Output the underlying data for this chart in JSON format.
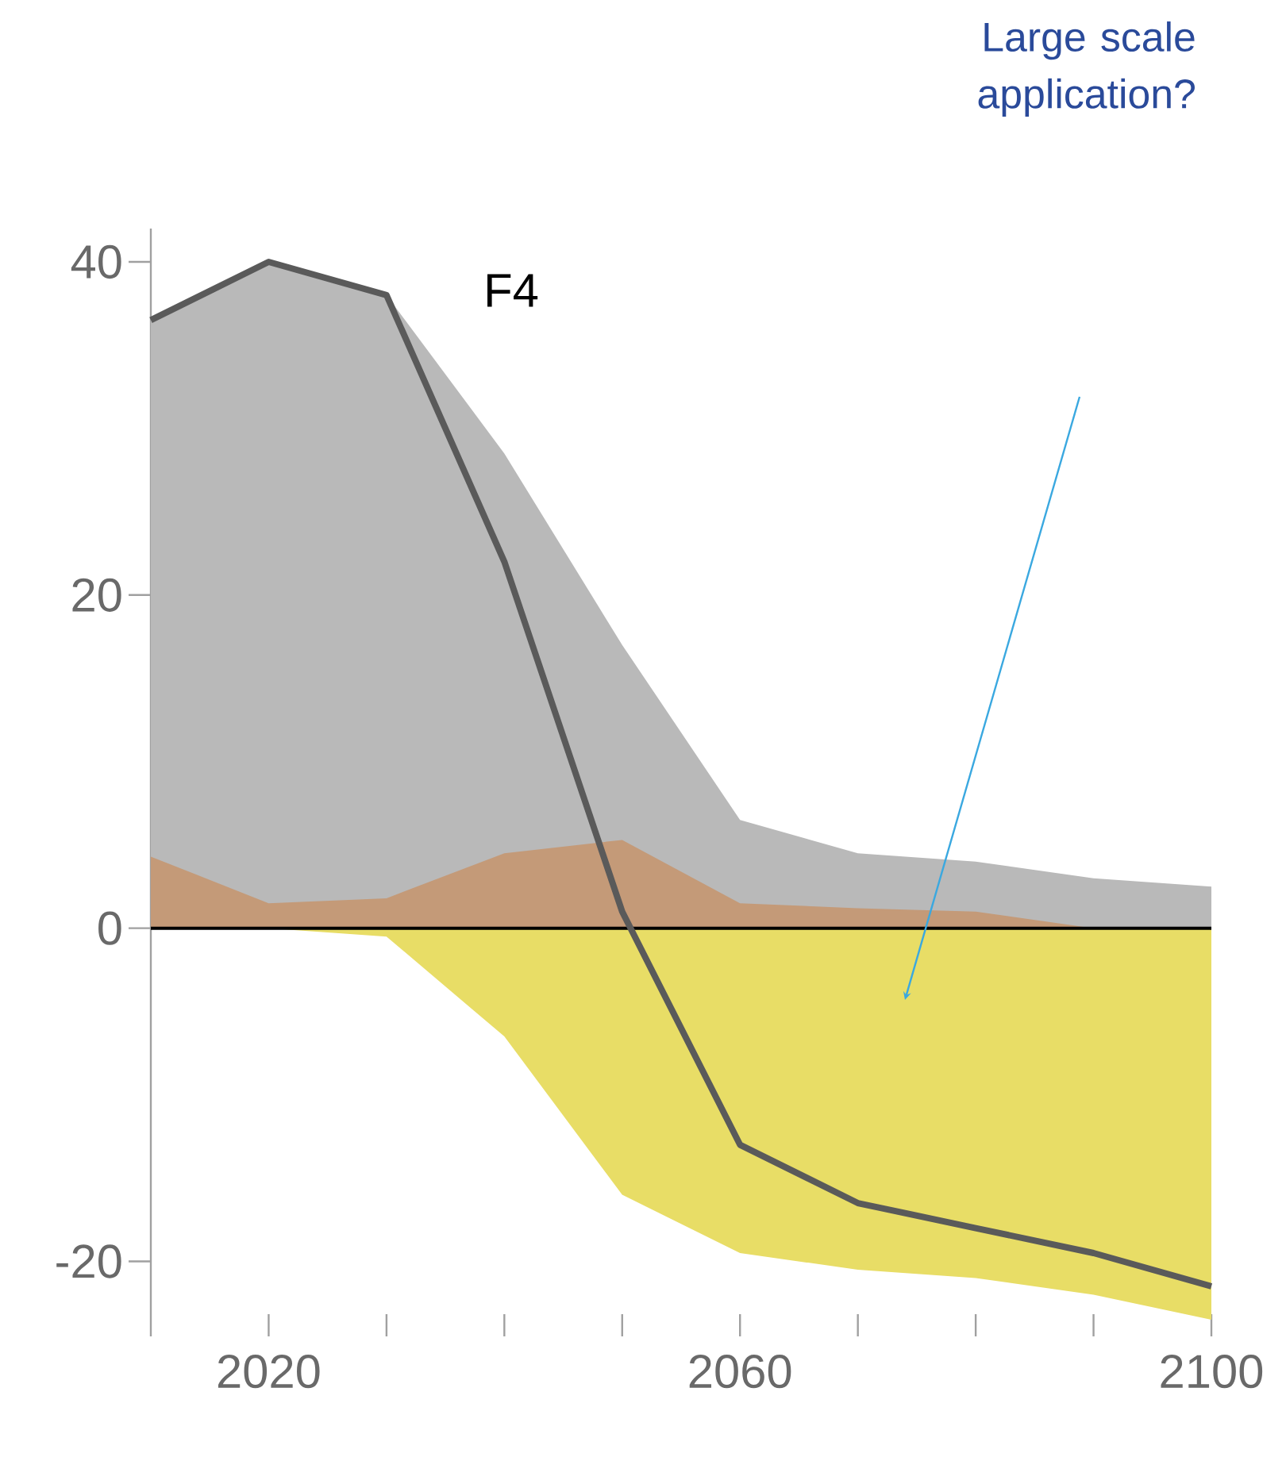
{
  "chart_data": {
    "type": "area",
    "annotations": [
      "F4",
      "Large scale application?"
    ],
    "x": [
      2010,
      2020,
      2030,
      2040,
      2050,
      2060,
      2070,
      2080,
      2090,
      2100
    ],
    "series": [
      {
        "color": "#b9b9b9",
        "values": [
          36.5,
          40,
          38,
          28.5,
          17,
          6.5,
          4.5,
          4,
          3,
          2.5
        ]
      },
      {
        "color": "#c49a78",
        "values": [
          4.3,
          1.5,
          1.8,
          4.5,
          5.3,
          1.5,
          1.2,
          1,
          0,
          -1
        ]
      },
      {
        "color": "#e8dd66",
        "values": [
          0,
          0,
          -0.5,
          -6.5,
          -16,
          -19.5,
          -20.5,
          -21,
          -22,
          -23.5
        ]
      },
      {
        "type": "line",
        "color": "#5a5a5a",
        "values": [
          36.5,
          40,
          38,
          22,
          1,
          -13,
          -16.5,
          -18,
          -19.5,
          -21.5
        ]
      }
    ],
    "xlim": [
      2010,
      2100
    ],
    "ylim": [
      -24.5,
      42
    ],
    "xticks": [
      {
        "value": 2020,
        "label": "2020"
      },
      {
        "value": 2030,
        "label": null
      },
      {
        "value": 2040,
        "label": null
      },
      {
        "value": 2050,
        "label": null
      },
      {
        "value": 2060,
        "label": "2060"
      },
      {
        "value": 2070,
        "label": null
      },
      {
        "value": 2080,
        "label": null
      },
      {
        "value": 2090,
        "label": null
      },
      {
        "value": 2100,
        "label": "2100"
      }
    ],
    "yticks": [
      -20,
      0,
      20,
      40
    ],
    "ref_lines": [
      {
        "axis": "y",
        "value": 0,
        "color": "#000000"
      }
    ],
    "grid": false
  }
}
